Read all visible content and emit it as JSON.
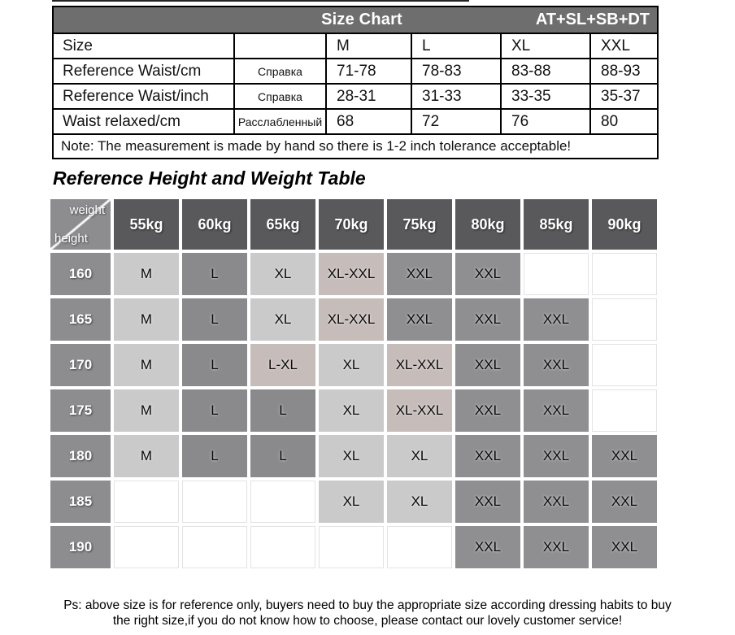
{
  "size_chart": {
    "header": {
      "title": "Size Chart",
      "code": "AT+SL+SB+DT"
    },
    "rows": [
      {
        "label": "Size",
        "ru": "",
        "values": [
          "M",
          "L",
          "XL",
          "XXL"
        ]
      },
      {
        "label": "Reference Waist/cm",
        "ru": "Справка",
        "values": [
          "71-78",
          "78-83",
          "83-88",
          "88-93"
        ]
      },
      {
        "label": "Reference Waist/inch",
        "ru": "Справка",
        "values": [
          "28-31",
          "31-33",
          "33-35",
          "35-37"
        ]
      },
      {
        "label": "Waist relaxed/cm",
        "ru": "Расслабленный",
        "values": [
          "68",
          "72",
          "76",
          "80"
        ]
      }
    ],
    "footnote": "Note: The measurement is made by hand so there is 1-2 inch tolerance acceptable!"
  },
  "hw_table": {
    "title": "Reference Height and Weight Table",
    "corner": {
      "top": "weight",
      "bottom": "height"
    },
    "weights": [
      "55kg",
      "60kg",
      "65kg",
      "70kg",
      "75kg",
      "80kg",
      "85kg",
      "90kg"
    ],
    "colors": {
      "light": "#cacaca",
      "mid": "#8a8a8c",
      "warm": "#c6bcb9",
      "gray": "#8f8f92",
      "header_dark": "#59595b",
      "header_light": "#8d8d8f",
      "bar": "#6e6e6e",
      "empty": "#ffffff"
    },
    "rows": [
      {
        "height": "160",
        "cells": [
          {
            "t": "M",
            "k": "light"
          },
          {
            "t": "L",
            "k": "mid"
          },
          {
            "t": "XL",
            "k": "light"
          },
          {
            "t": "XL-XXL",
            "k": "warm"
          },
          {
            "t": "XXL",
            "k": "gray"
          },
          {
            "t": "XXL",
            "k": "gray"
          },
          {
            "t": "",
            "k": "empty"
          },
          {
            "t": "",
            "k": "empty"
          }
        ]
      },
      {
        "height": "165",
        "cells": [
          {
            "t": "M",
            "k": "light"
          },
          {
            "t": "L",
            "k": "mid"
          },
          {
            "t": "XL",
            "k": "light"
          },
          {
            "t": "XL-XXL",
            "k": "warm"
          },
          {
            "t": "XXL",
            "k": "gray"
          },
          {
            "t": "XXL",
            "k": "gray"
          },
          {
            "t": "XXL",
            "k": "gray"
          },
          {
            "t": "",
            "k": "empty"
          }
        ]
      },
      {
        "height": "170",
        "cells": [
          {
            "t": "M",
            "k": "light"
          },
          {
            "t": "L",
            "k": "mid"
          },
          {
            "t": "L-XL",
            "k": "warm"
          },
          {
            "t": "XL",
            "k": "light"
          },
          {
            "t": "XL-XXL",
            "k": "warm"
          },
          {
            "t": "XXL",
            "k": "gray"
          },
          {
            "t": "XXL",
            "k": "gray"
          },
          {
            "t": "",
            "k": "empty"
          }
        ]
      },
      {
        "height": "175",
        "cells": [
          {
            "t": "M",
            "k": "light"
          },
          {
            "t": "L",
            "k": "mid"
          },
          {
            "t": "L",
            "k": "mid"
          },
          {
            "t": "XL",
            "k": "light"
          },
          {
            "t": "XL-XXL",
            "k": "warm"
          },
          {
            "t": "XXL",
            "k": "gray"
          },
          {
            "t": "XXL",
            "k": "gray"
          },
          {
            "t": "",
            "k": "empty"
          }
        ]
      },
      {
        "height": "180",
        "cells": [
          {
            "t": "M",
            "k": "light"
          },
          {
            "t": "L",
            "k": "mid"
          },
          {
            "t": "L",
            "k": "mid"
          },
          {
            "t": "XL",
            "k": "light"
          },
          {
            "t": "XL",
            "k": "light"
          },
          {
            "t": "XXL",
            "k": "gray"
          },
          {
            "t": "XXL",
            "k": "gray"
          },
          {
            "t": "XXL",
            "k": "gray"
          }
        ]
      },
      {
        "height": "185",
        "cells": [
          {
            "t": "",
            "k": "empty"
          },
          {
            "t": "",
            "k": "empty"
          },
          {
            "t": "",
            "k": "empty"
          },
          {
            "t": "XL",
            "k": "light"
          },
          {
            "t": "XL",
            "k": "light"
          },
          {
            "t": "XXL",
            "k": "gray"
          },
          {
            "t": "XXL",
            "k": "gray"
          },
          {
            "t": "XXL",
            "k": "gray"
          }
        ]
      },
      {
        "height": "190",
        "cells": [
          {
            "t": "",
            "k": "empty"
          },
          {
            "t": "",
            "k": "empty"
          },
          {
            "t": "",
            "k": "empty"
          },
          {
            "t": "",
            "k": "empty"
          },
          {
            "t": "",
            "k": "empty"
          },
          {
            "t": "XXL",
            "k": "gray"
          },
          {
            "t": "XXL",
            "k": "gray"
          },
          {
            "t": "XXL",
            "k": "gray"
          }
        ]
      }
    ]
  },
  "footer": {
    "line1": "Ps: above size is for reference only, buyers need to buy the appropriate size according dressing habits to buy",
    "line2": "the right size,if you do not know how to choose, please contact our lovely customer service!"
  }
}
